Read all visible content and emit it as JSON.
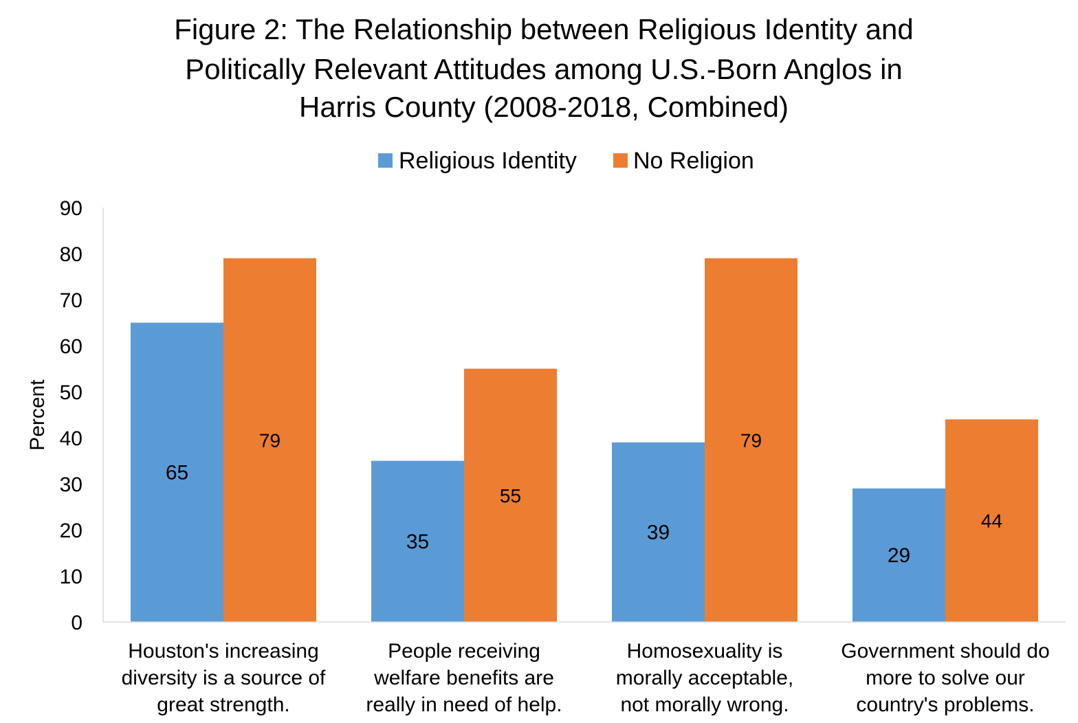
{
  "chart_data": {
    "type": "bar",
    "title": "Figure 2: The Relationship between Religious Identity and Politically Relevant Attitudes among U.S.-Born Anglos in Harris County (2008-2018, Combined)",
    "title_lines": [
      "Figure 2: The Relationship between Religious Identity and",
      "Politically Relevant Attitudes among U.S.-Born Anglos in",
      "Harris County (2008-2018, Combined)"
    ],
    "xlabel": "",
    "ylabel": "Percent",
    "ylim": [
      0,
      90
    ],
    "yticks": [
      0,
      10,
      20,
      30,
      40,
      50,
      60,
      70,
      80,
      90
    ],
    "grid": false,
    "legend_position": "top-center",
    "categories": [
      "Houston's increasing diversity is a source of great strength.",
      "People receiving welfare benefits are really in need of help.",
      "Homosexuality is morally acceptable, not morally wrong.",
      "Government should do more to solve our country's problems."
    ],
    "category_label_lines": [
      [
        "Houston's increasing",
        "diversity is a source of",
        "great strength."
      ],
      [
        "People receiving",
        "welfare benefits are",
        "really in need of help."
      ],
      [
        "Homosexuality is",
        "morally acceptable,",
        "not morally wrong."
      ],
      [
        "Government should do",
        "more to solve our",
        "country's problems."
      ]
    ],
    "series": [
      {
        "name": "Religious Identity",
        "color": "#5B9BD5",
        "values": [
          65,
          35,
          39,
          29
        ],
        "labels": [
          "65",
          "35",
          "39",
          "29"
        ]
      },
      {
        "name": "No Religion",
        "color": "#ED7D31",
        "values": [
          79,
          55,
          79,
          44
        ],
        "labels": [
          "79",
          "55",
          "79",
          "44"
        ]
      }
    ]
  }
}
